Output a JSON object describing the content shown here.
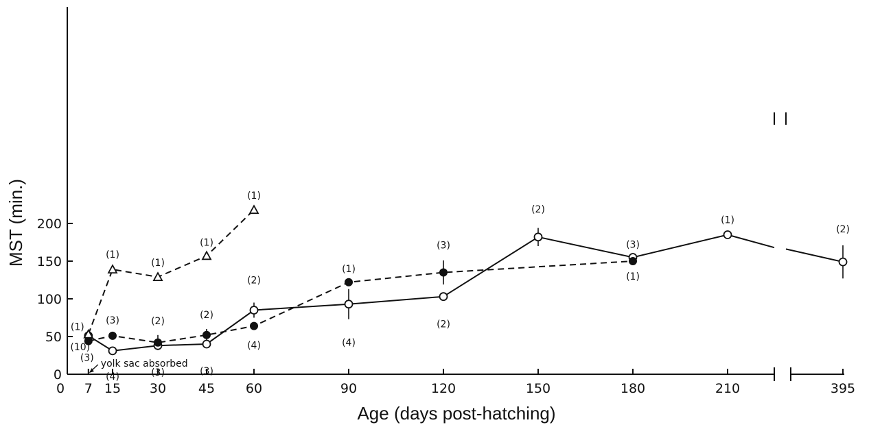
{
  "chart_data": {
    "type": "line",
    "title": "",
    "xlabel": "Age (days post-hatching)",
    "ylabel": "MST (min.)",
    "x_ticks": [
      "0",
      "7",
      "15",
      "30",
      "45",
      "60",
      "90",
      "120",
      "150",
      "180",
      "210",
      "395"
    ],
    "y_ticks": [
      "0",
      "50",
      "100",
      "150",
      "200"
    ],
    "ylim": [
      0,
      235
    ],
    "x_axis_break": "between 210 and 395",
    "grid": false,
    "legend": "none",
    "annotation": "yolk sac absorbed",
    "annotation_x": 7,
    "series": [
      {
        "marker": "open-circle",
        "line_style": "solid",
        "points": [
          {
            "x": 7,
            "y": 51,
            "n": "(10)"
          },
          {
            "x": 15,
            "y": 31,
            "n": "(4)"
          },
          {
            "x": 30,
            "y": 38,
            "n": "(3)"
          },
          {
            "x": 45,
            "y": 40,
            "n": "(3)"
          },
          {
            "x": 60,
            "y": 85,
            "n": "(2)",
            "err": 10
          },
          {
            "x": 90,
            "y": 93,
            "n": "(4)",
            "err": 20
          },
          {
            "x": 120,
            "y": 103,
            "n": "(2)"
          },
          {
            "x": 150,
            "y": 182,
            "n": "(2)",
            "err": 12
          },
          {
            "x": 180,
            "y": 155,
            "n": "(3)"
          },
          {
            "x": 210,
            "y": 185,
            "n": "(1)"
          },
          {
            "x": 395,
            "y": 149,
            "n": "(2)",
            "err": 22
          }
        ]
      },
      {
        "marker": "filled-circle",
        "line_style": "dashed",
        "points": [
          {
            "x": 7,
            "y": 44,
            "n": "(3)"
          },
          {
            "x": 15,
            "y": 51,
            "n": "(3)"
          },
          {
            "x": 30,
            "y": 42,
            "n": "(2)",
            "err": 10
          },
          {
            "x": 45,
            "y": 52,
            "n": "(2)",
            "err": 8
          },
          {
            "x": 60,
            "y": 64,
            "n": "(4)"
          },
          {
            "x": 90,
            "y": 122,
            "n": "(1)"
          },
          {
            "x": 120,
            "y": 135,
            "n": "(3)",
            "err": 16
          },
          {
            "x": 180,
            "y": 150,
            "n": "(1)"
          }
        ]
      },
      {
        "marker": "open-triangle",
        "line_style": "dashed",
        "points": [
          {
            "x": 7,
            "y": 53,
            "n": "(1)"
          },
          {
            "x": 15,
            "y": 139,
            "n": "(1)"
          },
          {
            "x": 30,
            "y": 129,
            "n": "(1)"
          },
          {
            "x": 45,
            "y": 157,
            "n": "(1)"
          },
          {
            "x": 60,
            "y": 218,
            "n": "(1)"
          }
        ]
      }
    ]
  }
}
